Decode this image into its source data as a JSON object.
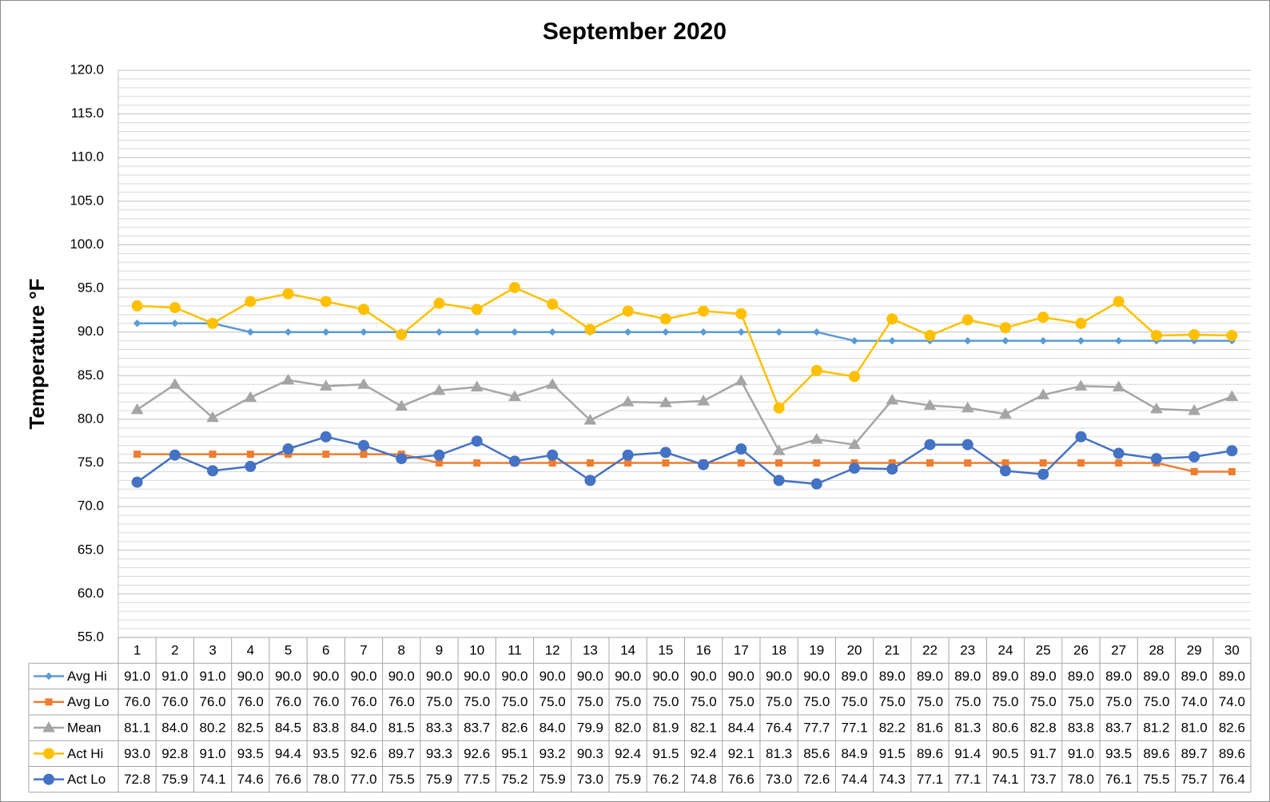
{
  "chart_data": {
    "type": "line",
    "title": "September 2020",
    "y_label": "Temperature °F",
    "categories": [
      "1",
      "2",
      "3",
      "4",
      "5",
      "6",
      "7",
      "8",
      "9",
      "10",
      "11",
      "12",
      "13",
      "14",
      "15",
      "16",
      "17",
      "18",
      "19",
      "20",
      "21",
      "22",
      "23",
      "24",
      "25",
      "26",
      "27",
      "28",
      "29",
      "30"
    ],
    "ylim": [
      55,
      120
    ],
    "yticks": [
      {
        "value": 55,
        "label": "55.0"
      },
      {
        "value": 60,
        "label": "60.0"
      },
      {
        "value": 65,
        "label": "65.0"
      },
      {
        "value": 70,
        "label": "70.0"
      },
      {
        "value": 75,
        "label": "75.0"
      },
      {
        "value": 80,
        "label": "80.0"
      },
      {
        "value": 85,
        "label": "85.0"
      },
      {
        "value": 90,
        "label": "90.0"
      },
      {
        "value": 95,
        "label": "95.0"
      },
      {
        "value": 100,
        "label": "100.0"
      },
      {
        "value": 105,
        "label": "105.0"
      },
      {
        "value": 110,
        "label": "110.0"
      },
      {
        "value": 115,
        "label": "115.0"
      },
      {
        "value": 120,
        "label": "120.0"
      }
    ],
    "grid": true,
    "minor_grid": true,
    "data_table": true,
    "series": [
      {
        "name": "Avg Hi",
        "color": "#5b9bd5",
        "marker": "diamond",
        "values": [
          91,
          91,
          91,
          90,
          90,
          90,
          90,
          90,
          90,
          90,
          90,
          90,
          90,
          90,
          90,
          90,
          90,
          90,
          90,
          89,
          89,
          89,
          89,
          89,
          89,
          89,
          89,
          89,
          89,
          89
        ],
        "value_labels": [
          "91.0",
          "91.0",
          "91.0",
          "90.0",
          "90.0",
          "90.0",
          "90.0",
          "90.0",
          "90.0",
          "90.0",
          "90.0",
          "90.0",
          "90.0",
          "90.0",
          "90.0",
          "90.0",
          "90.0",
          "90.0",
          "90.0",
          "89.0",
          "89.0",
          "89.0",
          "89.0",
          "89.0",
          "89.0",
          "89.0",
          "89.0",
          "89.0",
          "89.0",
          "89.0"
        ]
      },
      {
        "name": "Avg Lo",
        "color": "#ed7d31",
        "marker": "square",
        "values": [
          76,
          76,
          76,
          76,
          76,
          76,
          76,
          76,
          75,
          75,
          75,
          75,
          75,
          75,
          75,
          75,
          75,
          75,
          75,
          75,
          75,
          75,
          75,
          75,
          75,
          75,
          75,
          75,
          74,
          74
        ],
        "value_labels": [
          "76.0",
          "76.0",
          "76.0",
          "76.0",
          "76.0",
          "76.0",
          "76.0",
          "76.0",
          "75.0",
          "75.0",
          "75.0",
          "75.0",
          "75.0",
          "75.0",
          "75.0",
          "75.0",
          "75.0",
          "75.0",
          "75.0",
          "75.0",
          "75.0",
          "75.0",
          "75.0",
          "75.0",
          "75.0",
          "75.0",
          "75.0",
          "75.0",
          "74.0",
          "74.0"
        ]
      },
      {
        "name": "Mean",
        "color": "#a5a5a5",
        "marker": "triangle",
        "values": [
          81.1,
          84,
          80.2,
          82.5,
          84.5,
          83.8,
          84,
          81.5,
          83.3,
          83.7,
          82.6,
          84,
          79.9,
          82,
          81.9,
          82.1,
          84.4,
          76.4,
          77.7,
          77.1,
          82.2,
          81.6,
          81.3,
          80.6,
          82.8,
          83.8,
          83.7,
          81.2,
          81,
          82.6
        ],
        "value_labels": [
          "81.1",
          "84.0",
          "80.2",
          "82.5",
          "84.5",
          "83.8",
          "84.0",
          "81.5",
          "83.3",
          "83.7",
          "82.6",
          "84.0",
          "79.9",
          "82.0",
          "81.9",
          "82.1",
          "84.4",
          "76.4",
          "77.7",
          "77.1",
          "82.2",
          "81.6",
          "81.3",
          "80.6",
          "82.8",
          "83.8",
          "83.7",
          "81.2",
          "81.0",
          "82.6"
        ]
      },
      {
        "name": "Act Hi",
        "color": "#ffc000",
        "marker": "circle",
        "values": [
          93,
          92.8,
          91,
          93.5,
          94.4,
          93.5,
          92.6,
          89.7,
          93.3,
          92.6,
          95.1,
          93.2,
          90.3,
          92.4,
          91.5,
          92.4,
          92.1,
          81.3,
          85.6,
          84.9,
          91.5,
          89.6,
          91.4,
          90.5,
          91.7,
          91,
          93.5,
          89.6,
          89.7,
          89.6
        ],
        "value_labels": [
          "93.0",
          "92.8",
          "91.0",
          "93.5",
          "94.4",
          "93.5",
          "92.6",
          "89.7",
          "93.3",
          "92.6",
          "95.1",
          "93.2",
          "90.3",
          "92.4",
          "91.5",
          "92.4",
          "92.1",
          "81.3",
          "85.6",
          "84.9",
          "91.5",
          "89.6",
          "91.4",
          "90.5",
          "91.7",
          "91.0",
          "93.5",
          "89.6",
          "89.7",
          "89.6"
        ]
      },
      {
        "name": "Act Lo",
        "color": "#4472c4",
        "marker": "circle",
        "values": [
          72.8,
          75.9,
          74.1,
          74.6,
          76.6,
          78,
          77,
          75.5,
          75.9,
          77.5,
          75.2,
          75.9,
          73,
          75.9,
          76.2,
          74.8,
          76.6,
          73,
          72.6,
          74.4,
          74.3,
          77.1,
          77.1,
          74.1,
          73.7,
          78,
          76.1,
          75.5,
          75.7,
          76.4
        ],
        "value_labels": [
          "72.8",
          "75.9",
          "74.1",
          "74.6",
          "76.6",
          "78.0",
          "77.0",
          "75.5",
          "75.9",
          "77.5",
          "75.2",
          "75.9",
          "73.0",
          "75.9",
          "76.2",
          "74.8",
          "76.6",
          "73.0",
          "72.6",
          "74.4",
          "74.3",
          "77.1",
          "77.1",
          "74.1",
          "73.7",
          "78.0",
          "76.1",
          "75.5",
          "75.7",
          "76.4"
        ]
      }
    ]
  }
}
